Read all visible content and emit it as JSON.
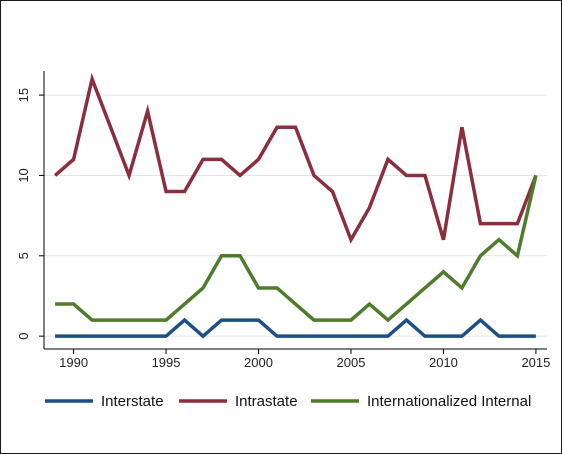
{
  "chart_data": {
    "type": "line",
    "title": "",
    "xlabel": "",
    "ylabel": "",
    "x": [
      1989,
      1990,
      1991,
      1992,
      1993,
      1994,
      1995,
      1996,
      1997,
      1998,
      1999,
      2000,
      2001,
      2002,
      2003,
      2004,
      2005,
      2006,
      2007,
      2008,
      2009,
      2010,
      2011,
      2012,
      2013,
      2014,
      2015
    ],
    "xlim": [
      1988.4,
      2015.6
    ],
    "ylim": [
      -0.8,
      16.5
    ],
    "xticks": [
      1990,
      1995,
      2000,
      2005,
      2010,
      2015
    ],
    "yticks": [
      0,
      5,
      10,
      15
    ],
    "xtick_labels": [
      "1990",
      "1995",
      "2000",
      "2005",
      "2010",
      "2015"
    ],
    "ytick_labels": [
      "0",
      "5",
      "10",
      "15"
    ],
    "grid": "horizontal",
    "legend_position": "bottom",
    "series": [
      {
        "name": "Interstate",
        "color": "#1c4f84",
        "values": [
          0,
          0,
          0,
          0,
          0,
          0,
          0,
          1,
          0,
          1,
          1,
          1,
          0,
          0,
          0,
          0,
          0,
          0,
          0,
          1,
          0,
          0,
          0,
          1,
          0,
          0,
          0
        ]
      },
      {
        "name": "Intrastate",
        "color": "#8b2e3e",
        "values": [
          10,
          11,
          16,
          13,
          10,
          14,
          9,
          9,
          11,
          11,
          10,
          11,
          13,
          13,
          10,
          9,
          6,
          8,
          11,
          10,
          10,
          6,
          13,
          7,
          7,
          7,
          10
        ]
      },
      {
        "name": "Internationalized Internal",
        "color": "#4e7c2c",
        "values": [
          2,
          2,
          1,
          1,
          1,
          1,
          1,
          2,
          3,
          5,
          5,
          3,
          3,
          2,
          1,
          1,
          1,
          2,
          1,
          2,
          3,
          4,
          3,
          5,
          6,
          5,
          10
        ]
      }
    ]
  }
}
